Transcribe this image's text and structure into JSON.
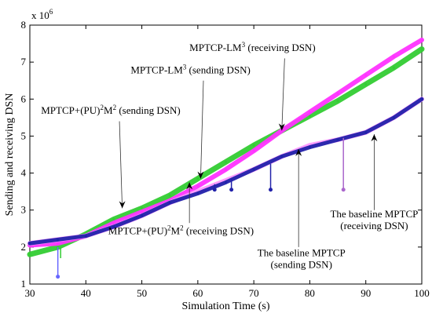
{
  "chart_data": {
    "type": "line",
    "xlabel": "Simulation Time (s)",
    "ylabel": "Sending and receiving DSN",
    "y_multiplier_label": "x 10",
    "y_multiplier_exp": "6",
    "xlim": [
      30,
      100
    ],
    "ylim": [
      1000000,
      8000000
    ],
    "x_ticks": [
      "30",
      "40",
      "50",
      "60",
      "70",
      "80",
      "90",
      "100"
    ],
    "y_ticks": [
      "1",
      "2",
      "3",
      "4",
      "5",
      "6",
      "7",
      "8"
    ],
    "grid": false,
    "series": [
      {
        "color": "#33cc33",
        "x": [
          30,
          35,
          40,
          45,
          50,
          55,
          60,
          65,
          70,
          75,
          80,
          85,
          90,
          95,
          100
        ],
        "y": [
          1800000,
          2000000,
          2350000,
          2750000,
          3050000,
          3400000,
          3850000,
          4300000,
          4750000,
          5150000,
          5550000,
          5950000,
          6400000,
          6850000,
          7350000
        ]
      },
      {
        "color": "#ff33ff",
        "x": [
          30,
          35,
          40,
          45,
          50,
          55,
          60,
          65,
          70,
          75,
          80,
          85,
          90,
          95,
          100
        ],
        "y": [
          2050000,
          2100000,
          2300000,
          2650000,
          2950000,
          3250000,
          3650000,
          4100000,
          4600000,
          5150000,
          5650000,
          6150000,
          6650000,
          7150000,
          7600000
        ]
      },
      {
        "color": "#ff99ff",
        "x": [
          30,
          35,
          40,
          45,
          50,
          55,
          60,
          65,
          70,
          75,
          80,
          85,
          90,
          95,
          100
        ],
        "y": [
          2100000,
          2200000,
          2300000,
          2550000,
          2850000,
          3200000,
          3500000,
          3800000,
          4100000,
          4450000,
          4750000,
          4900000,
          5100000,
          5500000,
          6000000
        ]
      },
      {
        "color": "#2222aa",
        "x": [
          30,
          35,
          40,
          45,
          50,
          55,
          60,
          65,
          70,
          75,
          80,
          85,
          90,
          95,
          100
        ],
        "y": [
          2100000,
          2200000,
          2300000,
          2550000,
          2850000,
          3200000,
          3450000,
          3750000,
          4100000,
          4450000,
          4700000,
          4900000,
          5100000,
          5500000,
          6000000
        ]
      }
    ],
    "spikes": [
      {
        "color": "#6666ff",
        "x": 35,
        "from": 2000000,
        "to": 1200000,
        "dot": 1200000
      },
      {
        "color": "#33cc33",
        "x": 35.5,
        "from": 2000000,
        "to": 1700000,
        "dot": null
      },
      {
        "color": "#2222aa",
        "x": 63,
        "from": 3700000,
        "to": 3550000,
        "dot": 3550000
      },
      {
        "color": "#2222aa",
        "x": 66,
        "from": 3850000,
        "to": 3550000,
        "dot": 3550000
      },
      {
        "color": "#2222aa",
        "x": 73,
        "from": 4250000,
        "to": 3550000,
        "dot": 3550000
      },
      {
        "color": "#aa66cc",
        "x": 86,
        "from": 4950000,
        "to": 3550000,
        "dot": 3550000
      }
    ],
    "annotations": [
      {
        "id": "lm3-recv",
        "pre": "MPTCP-LM",
        "sup": "3",
        "post": " (receiving DSN)",
        "text_x": 58.5,
        "text_y": 7300000,
        "anchor": "start",
        "arrow_from": [
          75.5,
          7100000
        ],
        "arrow_to": [
          75,
          5150000
        ],
        "dir": "down"
      },
      {
        "id": "lm3-send",
        "pre": "MPTCP-LM",
        "sup": "3",
        "post": " (sending DSN)",
        "text_x": 48,
        "text_y": 6700000,
        "anchor": "start",
        "arrow_from": [
          61,
          6500000
        ],
        "arrow_to": [
          60.5,
          3850000
        ],
        "dir": "down"
      },
      {
        "id": "pu-send",
        "pre": "MPTCP+(PU)",
        "sup": "2",
        "mid": "M",
        "sup2": "2",
        "post": " (sending DSN)",
        "text_x": 32,
        "text_y": 5600000,
        "anchor": "start",
        "arrow_from": [
          46,
          5400000
        ],
        "arrow_to": [
          46.5,
          3050000
        ],
        "dir": "down"
      },
      {
        "id": "pu-recv",
        "pre": "MPTCP+(PU)",
        "sup": "2",
        "mid": "M",
        "sup2": "2",
        "post": " (receiving DSN)",
        "text_x": 44,
        "text_y": 2350000,
        "anchor": "start",
        "arrow_from": [
          58.5,
          2650000
        ],
        "arrow_to": [
          58.5,
          3750000
        ],
        "dir": "up"
      },
      {
        "id": "base-send",
        "pre": "The baseline MPTCP",
        "text_x": 78.5,
        "text_y": 1750000,
        "anchor": "middle",
        "line2": "(sending DSN)",
        "arrow_from": [
          78,
          2000000
        ],
        "arrow_to": [
          78,
          4650000
        ],
        "dir": "up"
      },
      {
        "id": "base-recv",
        "pre": "The baseline MPTCP",
        "text_x": 91.5,
        "text_y": 2800000,
        "anchor": "middle",
        "line2": "(receiving DSN)",
        "arrow_from": [
          91.5,
          3000000
        ],
        "arrow_to": [
          91.5,
          5050000
        ],
        "dir": "up"
      }
    ]
  }
}
